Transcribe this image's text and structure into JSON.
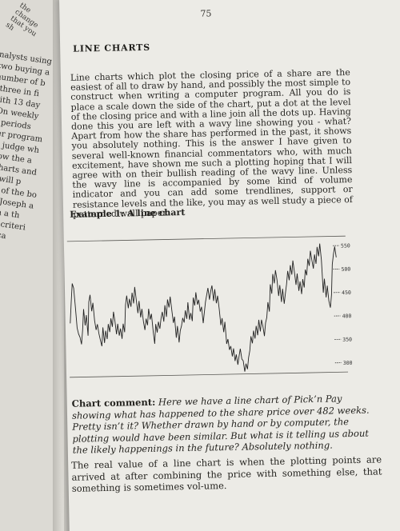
{
  "left_page": {
    "top_fragments": [
      "the change",
      "that you sh"
    ],
    "lines": [
      "nalysts using",
      "two buying a",
      "number of b",
      ", three in fi",
      "with 13 day",
      ". On weekly",
      "er periods",
      "",
      "uter program",
      ", to judge wh",
      "below the a",
      "of charts and",
      "",
      "",
      "you will p",
      "riter of the bo",
      "ofit', Joseph a",
      "use in a th",
      "s, the criteri",
      "n Africa"
    ]
  },
  "page": {
    "number": "75",
    "heading": "LINE CHARTS",
    "body": "Line charts which plot the closing price of a share are the easiest of all to draw by hand, and possibly the most simple to construct when writing a computer program. All you do is place a scale down the side of the chart, put a dot at the level of the closing price and with a line join all the dots up. Having done this you are left with a wavy line showing you - what? Apart from how the share has performed in the past, it shows you absolutely nothing. This is the answer I have given to several well-known financial commentators who, with much excitement, have shown me such a plotting hoping that I will agree with on their bullish reading of the wavy line. Unless the wavy line is accompanied by some kind of volume indicator and you can add some trendlines, support or resistance levels and the like, you may as well study a piece of patterned wall paper.",
    "example_title": "Example 1: A line chart",
    "comment_label": "Chart comment:",
    "comment_text": "Here we have a line chart of Pick’n Pay showing what has happened to the share price over 482 weeks. Pretty isn’t it? Whether drawn by hand or by computer, the plotting would have been similar. But what is it telling us about the likely happenings in the future? Absolutely nothing.",
    "closing": "The real value of a line chart is when the plotting points are arrived at after combining the price with something else, that something is sometimes vol-ume."
  },
  "chart_data": {
    "type": "line",
    "title": "",
    "x_count": 482,
    "ylim": [
      280,
      570
    ],
    "y_ticks": [
      550,
      500,
      450,
      400,
      350,
      300
    ],
    "y_tick_labels": [
      "550",
      "500",
      "450",
      "400",
      "350",
      "300"
    ],
    "series": [
      {
        "values": [
          395,
          440,
          480,
          470,
          430,
          385,
          372,
          365,
          350,
          380,
          425,
          390,
          412,
          368,
          440,
          455,
          420,
          438,
          400,
          380,
          392,
          372,
          358,
          345,
          385,
          352,
          378,
          360,
          392,
          375,
          404,
          386,
          418,
          398,
          370,
          392,
          367,
          382,
          360,
          392,
          374,
          432,
          452,
          425,
          445,
          428,
          458,
          435,
          470,
          442,
          414,
          440,
          405,
          423,
          395,
          378,
          402,
          388,
          423,
          400,
          412,
          376,
          348,
          390,
          372,
          395,
          380,
          402,
          416,
          395,
          430,
          405,
          442,
          425,
          448,
          420,
          392,
          405,
          360,
          385,
          350,
          375,
          385,
          402,
          392,
          418,
          400,
          435,
          398,
          412,
          395,
          445,
          428,
          456,
          430,
          440,
          415,
          425,
          390,
          412,
          435,
          450,
          465,
          440,
          458,
          470,
          437,
          462,
          432,
          448,
          420,
          385,
          400,
          370,
          392,
          345,
          355,
          332,
          340,
          318,
          335,
          308,
          322,
          300,
          318,
          334,
          312,
          308,
          285,
          302,
          290,
          315,
          330,
          360,
          345,
          372,
          355,
          382,
          362,
          395,
          370,
          395,
          380,
          360,
          388,
          400,
          432,
          412,
          470,
          450,
          492,
          472,
          500,
          480,
          445,
          468,
          432,
          460,
          428,
          450,
          470,
          498,
          478,
          510,
          490,
          520,
          495,
          468,
          492,
          455,
          475,
          448,
          480,
          462,
          500,
          488,
          523,
          508,
          540,
          520,
          502,
          532,
          512,
          548,
          528,
          555,
          520,
          450,
          480,
          440,
          465,
          432,
          418,
          445,
          510,
          532,
          548,
          525
        ]
      }
    ],
    "grid": false
  }
}
